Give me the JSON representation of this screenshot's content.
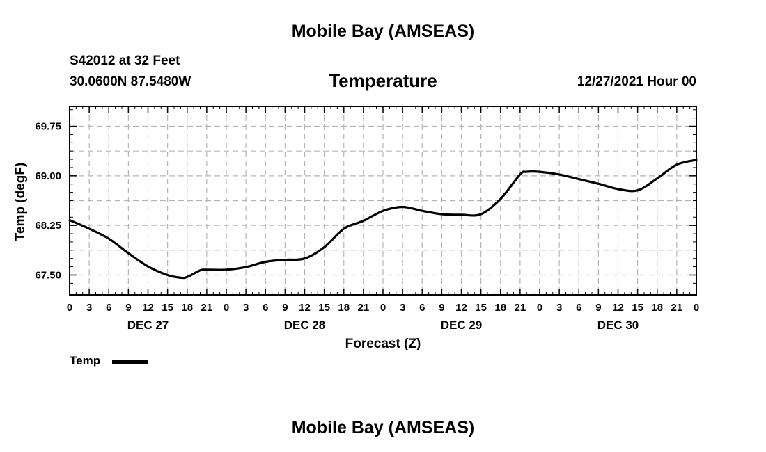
{
  "header": {
    "title_top": "Mobile Bay (AMSEAS)",
    "station_line": "S42012 at 32 Feet",
    "coords_line": "30.0600N  87.5480W",
    "variable": "Temperature",
    "datetime": "12/27/2021 Hour 00"
  },
  "legend": {
    "label": "Temp"
  },
  "footer": {
    "title_bottom": "Mobile Bay (AMSEAS)"
  },
  "chart_data": {
    "type": "line",
    "title": "Temperature",
    "xlabel": "Forecast (Z)",
    "ylabel": "Temp (degF)",
    "x_unit": "forecast hour",
    "xlim": [
      0,
      96
    ],
    "ylim": [
      67.2,
      70.05
    ],
    "y_ticks": [
      67.5,
      68.25,
      69.0,
      69.75
    ],
    "y_tick_labels": [
      "67.50",
      "68.25",
      "69.00",
      "69.75"
    ],
    "x_ticks": [
      0,
      3,
      6,
      9,
      12,
      15,
      18,
      21,
      24,
      27,
      30,
      33,
      36,
      39,
      42,
      45,
      48,
      51,
      54,
      57,
      60,
      63,
      66,
      69,
      72,
      75,
      78,
      81,
      84,
      87,
      90,
      93,
      96
    ],
    "x_tick_labels": [
      "0",
      "3",
      "6",
      "9",
      "12",
      "15",
      "18",
      "21",
      "0",
      "3",
      "6",
      "9",
      "12",
      "15",
      "18",
      "21",
      "0",
      "3",
      "6",
      "9",
      "12",
      "15",
      "18",
      "21",
      "0",
      "3",
      "6",
      "9",
      "12",
      "15",
      "18",
      "21",
      "0"
    ],
    "day_labels": [
      {
        "x": 12,
        "label": "DEC 27"
      },
      {
        "x": 36,
        "label": "DEC 28"
      },
      {
        "x": 60,
        "label": "DEC 29"
      },
      {
        "x": 84,
        "label": "DEC 30"
      }
    ],
    "grid": true,
    "legend_position": "bottom-left",
    "series": [
      {
        "name": "Temp",
        "color": "#000000",
        "x": [
          0,
          3,
          6,
          9,
          12,
          15,
          17,
          18,
          20,
          21,
          24,
          27,
          30,
          33,
          36,
          39,
          42,
          45,
          48,
          51,
          54,
          57,
          60,
          63,
          66,
          69,
          70,
          72,
          75,
          78,
          81,
          84,
          87,
          90,
          93,
          96
        ],
        "y": [
          68.33,
          68.2,
          68.05,
          67.83,
          67.63,
          67.5,
          67.46,
          67.47,
          67.57,
          67.58,
          67.58,
          67.62,
          67.7,
          67.73,
          67.75,
          67.92,
          68.2,
          68.32,
          68.47,
          68.53,
          68.47,
          68.42,
          68.41,
          68.42,
          68.65,
          69.02,
          69.06,
          69.06,
          69.02,
          68.95,
          68.88,
          68.8,
          68.78,
          68.96,
          69.17,
          69.24
        ]
      }
    ]
  }
}
